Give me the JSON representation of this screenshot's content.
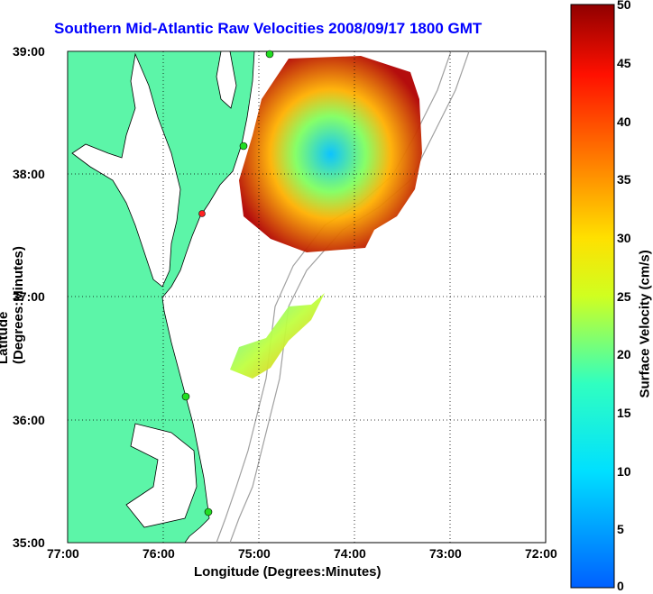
{
  "title": "Southern Mid-Atlantic Raw Velocities 2008/09/17 1800 GMT",
  "xlabel": "Longitude (Degrees:Minutes)",
  "ylabel": "Latitude (Degrees:Minutes)",
  "colorbar_label": "Surface Velocity (cm/s)",
  "x_ticks": [
    "77:00",
    "76:00",
    "75:00",
    "74:00",
    "73:00",
    "72:00"
  ],
  "y_ticks": [
    "39:00",
    "38:00",
    "37:00",
    "36:00",
    "35:00"
  ],
  "colorbar_ticks": [
    "50",
    "45",
    "40",
    "35",
    "30",
    "25",
    "20",
    "15",
    "10",
    "5",
    "0"
  ],
  "colors": {
    "land": "#5cf5a8",
    "title": "#0000ff",
    "bathymetry": "#a0a0a0",
    "site_marker": "#22dd22",
    "site_marker_alt": "#ff2222"
  },
  "chart_data": {
    "type": "heatmap",
    "xlim": [
      -77,
      -72
    ],
    "ylim": [
      35,
      39
    ],
    "clim": [
      0,
      50
    ],
    "grid": true,
    "colormap": "jet"
  }
}
